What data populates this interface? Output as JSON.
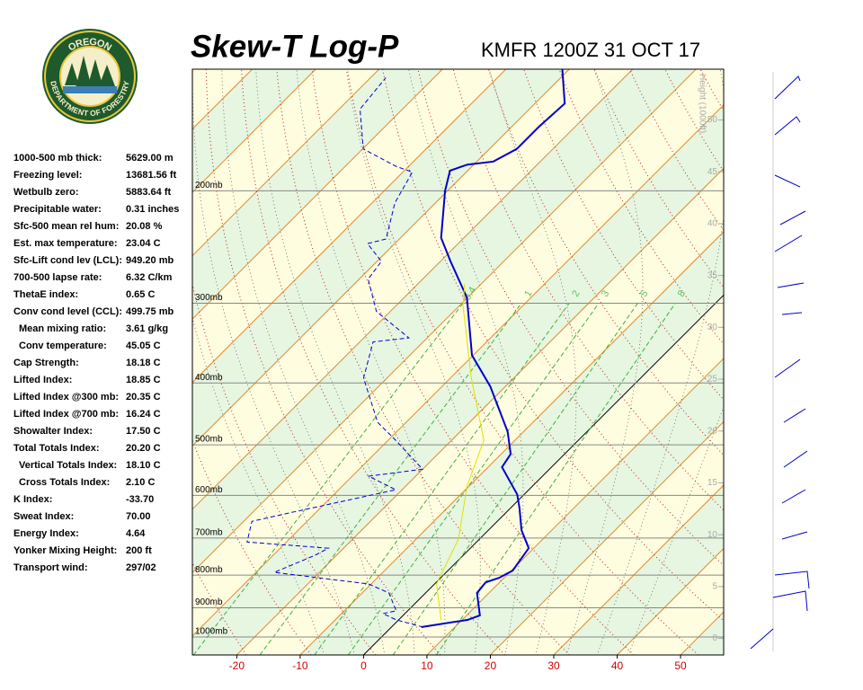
{
  "logo": {
    "top": "OREGON",
    "bottom": "DEPARTMENT OF FORESTRY"
  },
  "indices": [
    [
      "1000-500 mb thick:",
      "5629.00 m"
    ],
    [
      "Freezing level:",
      "13681.56 ft"
    ],
    [
      "Wetbulb zero:",
      "5883.64 ft"
    ],
    [
      "Precipitable water:",
      "0.31 inches"
    ],
    [
      "Sfc-500 mean rel hum:",
      "20.08 %"
    ],
    [
      "Est. max temperature:",
      "23.04 C"
    ],
    [
      "Sfc-Lift cond lev (LCL):",
      "949.20 mb"
    ],
    [
      "700-500 lapse rate:",
      "6.32 C/km"
    ],
    [
      "ThetaE index:",
      "0.65 C"
    ],
    [
      "Conv cond level (CCL):",
      "499.75 mb"
    ],
    [
      "Mean mixing ratio:",
      "3.61 g/kg"
    ],
    [
      "Conv temperature:",
      "45.05 C"
    ],
    [
      "Cap Strength:",
      "18.18 C"
    ],
    [
      "Lifted Index:",
      "18.85 C"
    ],
    [
      "Lifted Index @300 mb:",
      "20.35 C"
    ],
    [
      "Lifted Index @700 mb:",
      "16.24 C"
    ],
    [
      "Showalter Index:",
      "17.50 C"
    ],
    [
      "Total Totals Index:",
      "20.20 C"
    ],
    [
      "Vertical Totals Index:",
      "18.10 C"
    ],
    [
      "Cross Totals Index:",
      "2.10 C"
    ],
    [
      "K Index:",
      "-33.70"
    ],
    [
      "Sweat Index:",
      "70.00"
    ],
    [
      "Energy Index:",
      "4.64"
    ],
    [
      "Yonker Mixing Height:",
      "200 ft"
    ],
    [
      "Transport wind:",
      "297/02"
    ]
  ],
  "chart_data": {
    "type": "skewt",
    "title": "Skew-T Log-P",
    "subtitle": "KMFR 1200Z 31 OCT 17",
    "y2_label": "Height (1000ft)",
    "xlim": [
      -27,
      56.8
    ],
    "xticks": [
      -20,
      -10,
      0,
      10,
      20,
      30,
      40,
      50
    ],
    "ylim": [
      1067,
      129
    ],
    "log_y": true,
    "yticks": [
      {
        "value": 200,
        "label": "200mb"
      },
      {
        "value": 300,
        "label": "300mb"
      },
      {
        "value": 400,
        "label": "400mb"
      },
      {
        "value": 500,
        "label": "500mb"
      },
      {
        "value": 600,
        "label": "600mb"
      },
      {
        "value": 700,
        "label": "700mb"
      },
      {
        "value": 800,
        "label": "800mb"
      },
      {
        "value": 900,
        "label": "900mb"
      },
      {
        "value": 1000,
        "label": "1000mb"
      }
    ],
    "y2lim": [
      -1.6,
      54.9
    ],
    "y2ticks": [
      0,
      5,
      10,
      15,
      20,
      25,
      30,
      35,
      40,
      45,
      50
    ],
    "mixing_ratios": [
      0.4,
      1,
      2,
      3,
      5,
      8
    ],
    "series": [
      {
        "name": "Temperature",
        "color": "#0000cc",
        "style": "solid",
        "pressure": [
          965,
          940,
          925,
          853,
          821,
          808,
          787,
          726,
          680,
          628,
          598,
          542,
          517,
          477,
          405,
          362,
          294,
          258,
          237,
          230,
          200,
          186,
          182,
          180,
          172,
          159,
          146,
          129
        ],
        "values": [
          4.7,
          10.9,
          12.1,
          8.1,
          7.8,
          9.2,
          10.2,
          9.2,
          5.2,
          1.4,
          -1.1,
          -7.8,
          -8.5,
          -12.5,
          -22.4,
          -30.2,
          -40.1,
          -48.4,
          -53.6,
          -54.8,
          -60.4,
          -62.8,
          -61.0,
          -57.4,
          -55.7,
          -55.7,
          -55.3,
          -61.1
        ]
      },
      {
        "name": "Dewpoint",
        "color": "#0000cc",
        "style": "dashed",
        "pressure": [
          965,
          940,
          919,
          910,
          853,
          826,
          792,
          745,
          726,
          710,
          659,
          638,
          588,
          560,
          546,
          492,
          461,
          393,
          345,
          340,
          309,
          275,
          258,
          242,
          238,
          209,
          187,
          183,
          172,
          149,
          133
        ],
        "values": [
          5.0,
          -0.4,
          -3.5,
          -1.8,
          -5.8,
          -10.4,
          -27.1,
          -23.4,
          -22.4,
          -36.2,
          -38.7,
          -33.8,
          -21.0,
          -27.4,
          -20.0,
          -28.8,
          -34.5,
          -43.7,
          -47.9,
          -42.9,
          -52.2,
          -58.6,
          -59.3,
          -64.3,
          -62.1,
          -66.4,
          -68.5,
          -72.1,
          -79.9,
          -86.7,
          -87.6
        ]
      },
      {
        "name": "Parcel",
        "color": "#e0e000",
        "style": "thin",
        "pressure": [
          940,
          826,
          703,
          579,
          492,
          393,
          303,
          280
        ],
        "values": [
          6.7,
          0.3,
          -3.3,
          -10.4,
          -14.9,
          -26.7,
          -39.4,
          -42.6
        ]
      }
    ]
  }
}
